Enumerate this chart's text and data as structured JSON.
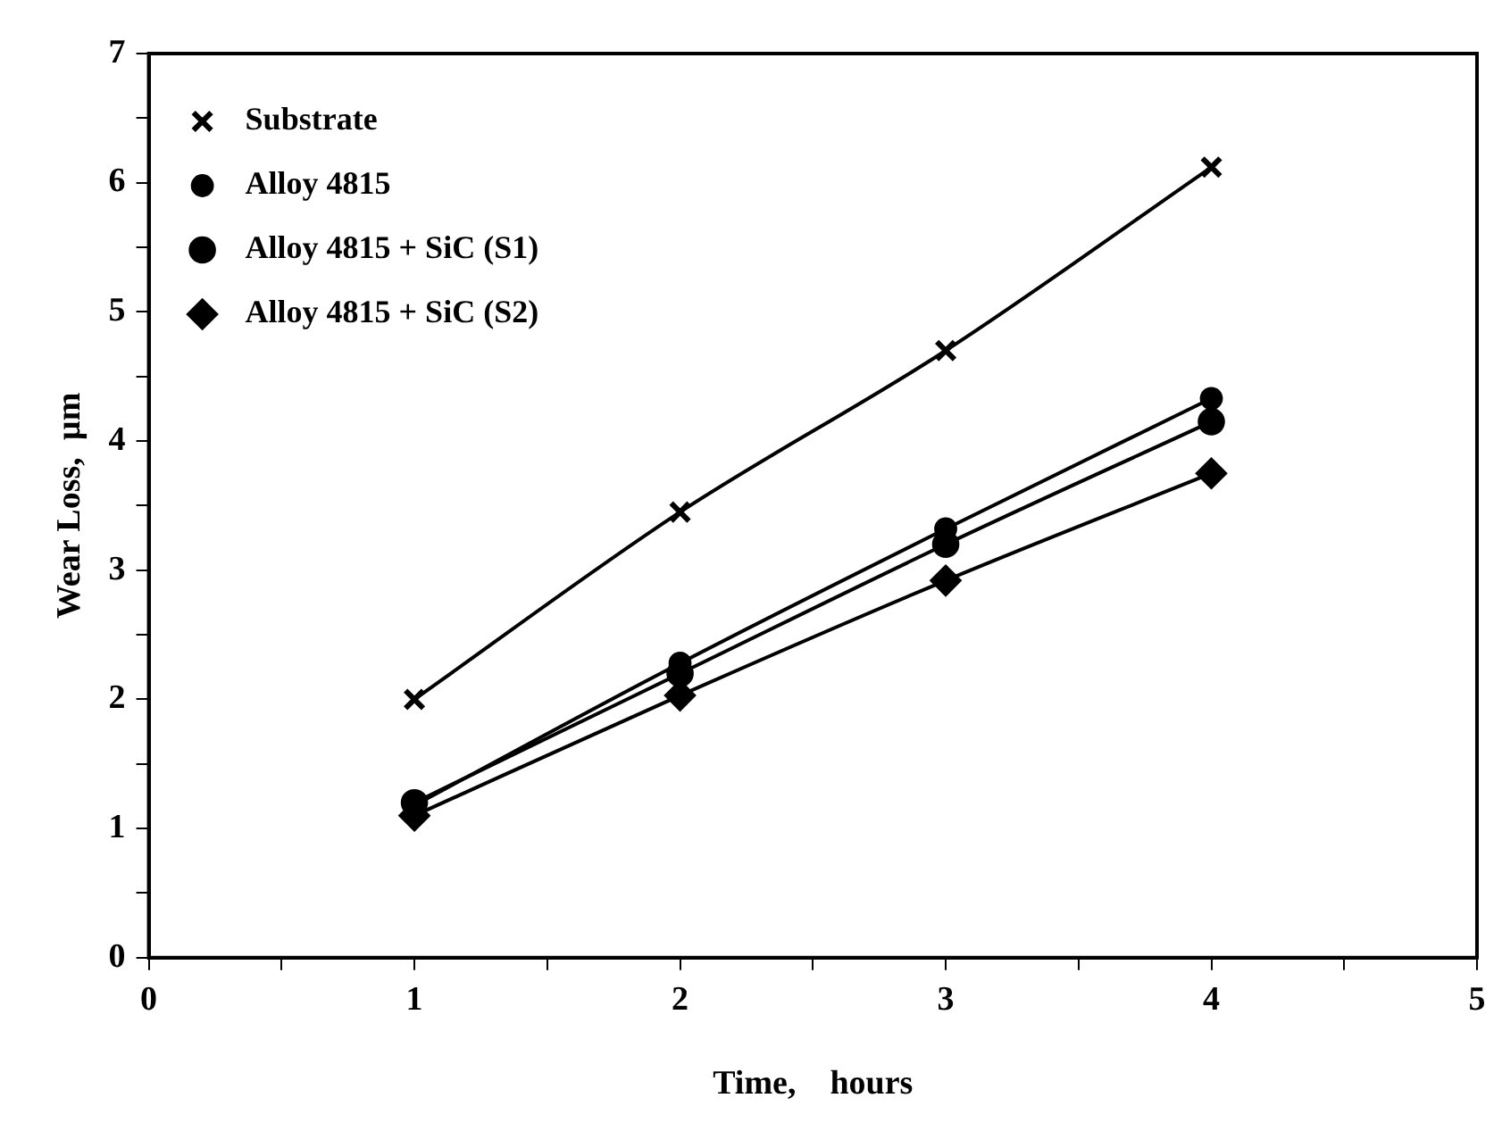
{
  "chart_data": {
    "type": "line",
    "xlabel": "Time,    hours",
    "ylabel": "Wear Loss,  µm",
    "xlim": [
      0,
      5
    ],
    "ylim": [
      0,
      7
    ],
    "xticks": [
      0,
      {
        "value": 0.5,
        "label": null
      },
      1,
      {
        "value": 1.5,
        "label": null
      },
      2,
      {
        "value": 2.5,
        "label": null
      },
      3,
      {
        "value": 3.5,
        "label": null
      },
      4,
      {
        "value": 4.5,
        "label": null
      },
      5
    ],
    "yticks": [
      0,
      {
        "value": 0.5,
        "label": null
      },
      1,
      {
        "value": 1.5,
        "label": null
      },
      2,
      {
        "value": 2.5,
        "label": null
      },
      3,
      {
        "value": 3.5,
        "label": null
      },
      4,
      {
        "value": 4.5,
        "label": null
      },
      5,
      {
        "value": 5.5,
        "label": null
      },
      6,
      {
        "value": 6.5,
        "label": null
      },
      7
    ],
    "x": [
      1,
      2,
      3,
      4
    ],
    "grid": false,
    "legend": "top left",
    "line_style": "solid",
    "series": [
      {
        "name": "Substrate",
        "color": "#000000",
        "marker": "cross",
        "values": [
          2.0,
          3.45,
          4.7,
          6.12
        ]
      },
      {
        "name": "Alloy 4815",
        "color": "#000000",
        "marker": "circle",
        "values": [
          1.18,
          2.28,
          3.32,
          4.33
        ]
      },
      {
        "name": "Alloy 4815 + SiC (S1)",
        "color": "#000000",
        "marker": "circle",
        "values": [
          1.2,
          2.2,
          3.2,
          4.15
        ]
      },
      {
        "name": "Alloy 4815 + SiC (S2)",
        "color": "#000000",
        "marker": "diamond",
        "values": [
          1.1,
          2.03,
          2.92,
          3.75
        ]
      }
    ]
  }
}
